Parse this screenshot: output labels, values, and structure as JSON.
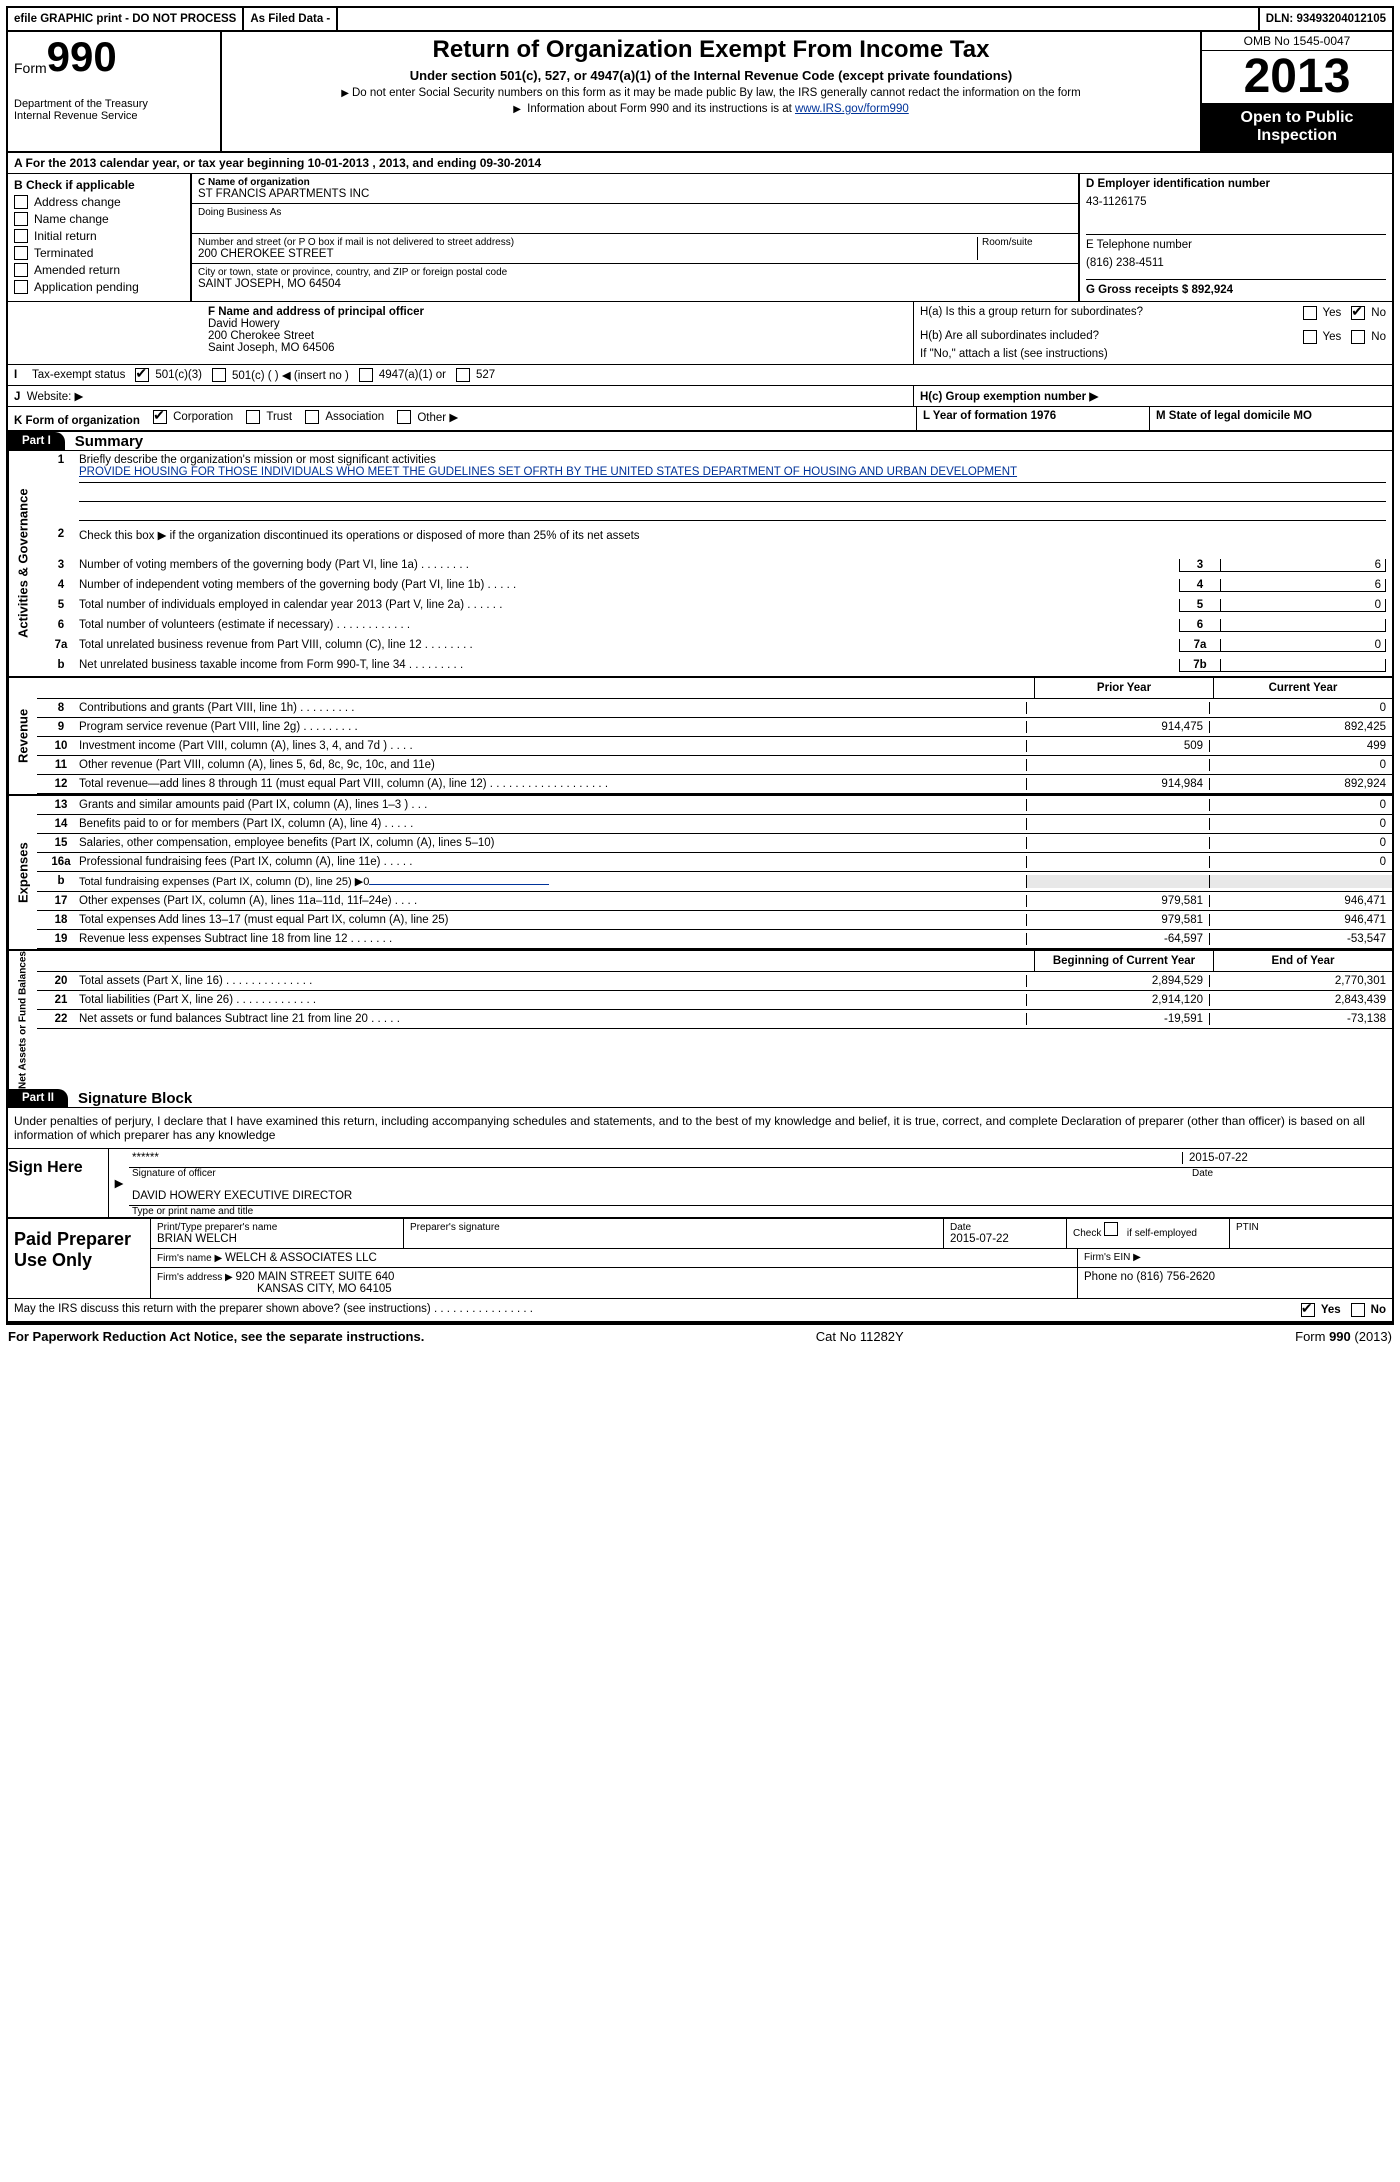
{
  "topbar": {
    "efile": "efile GRAPHIC print - DO NOT PROCESS",
    "asfiled": "As Filed Data -",
    "dln": "DLN: 93493204012105"
  },
  "header": {
    "form_word": "Form",
    "form_num": "990",
    "dept1": "Department of the Treasury",
    "dept2": "Internal Revenue Service",
    "title": "Return of Organization Exempt From Income Tax",
    "subtitle": "Under section 501(c), 527, or 4947(a)(1) of the Internal Revenue Code (except private foundations)",
    "note1": "Do not enter Social Security numbers on this form as it may be made public  By law, the IRS generally cannot redact the information on the form",
    "note2_pre": "Information about Form 990 and its instructions is at ",
    "note2_link": "www.IRS.gov/form990",
    "omb": "OMB No  1545-0047",
    "year": "2013",
    "open1": "Open to Public",
    "open2": "Inspection"
  },
  "rowA": "A  For the 2013 calendar year, or tax year beginning 10-01-2013      , 2013, and ending 09-30-2014",
  "colB": {
    "hdr": "B  Check if applicable",
    "items": [
      "Address change",
      "Name change",
      "Initial return",
      "Terminated",
      "Amended return",
      "Application pending"
    ]
  },
  "colC": {
    "c_label": "C Name of organization",
    "c_name": "ST FRANCIS APARTMENTS INC",
    "dba": "Doing Business As",
    "addr_label": "Number and street (or P O  box if mail is not delivered to street address)",
    "room": "Room/suite",
    "addr": "200 CHEROKEE STREET",
    "city_label": "City or town, state or province, country, and ZIP or foreign postal code",
    "city": "SAINT JOSEPH, MO  64504"
  },
  "colD": {
    "d_label": "D Employer identification number",
    "ein": "43-1126175",
    "e_label": "E Telephone number",
    "phone": "(816) 238-4511",
    "g_label": "G Gross receipts $ 892,924"
  },
  "rowF": {
    "f_label": "F  Name and address of principal officer",
    "f_name": "David Howery",
    "f_addr1": "200 Cherokee Street",
    "f_addr2": "Saint Joseph, MO  64506"
  },
  "rowH": {
    "ha": "H(a)  Is this a group return for subordinates?",
    "hb": "H(b)  Are all subordinates included?",
    "hb_note": "If \"No,\" attach a list  (see instructions)",
    "hc": "H(c)  Group exemption number ▶",
    "yes": "Yes",
    "no": "No"
  },
  "rowI": {
    "label": "I",
    "text": "Tax-exempt status",
    "o1": "501(c)(3)",
    "o2": "501(c) (   ) ◀ (insert no )",
    "o3": "4947(a)(1) or",
    "o4": "527"
  },
  "rowJ": {
    "label": "J",
    "text": "Website: ▶"
  },
  "rowK": {
    "k": "K Form of organization",
    "k1": "Corporation",
    "k2": "Trust",
    "k3": "Association",
    "k4": "Other ▶",
    "l": "L Year of formation  1976",
    "m": "M State of legal domicile MO"
  },
  "part1": {
    "tag": "Part I",
    "title": "Summary"
  },
  "gov": {
    "vlabel": "Activities & Governance",
    "l1a": "Briefly describe the organization's mission or most significant activities",
    "l1b": "PROVIDE HOUSING FOR THOSE INDIVIDUALS WHO MEET THE GUDELINES SET OFRTH BY THE UNITED STATES DEPARTMENT OF HOUSING AND URBAN DEVELOPMENT",
    "l2": "Check this box ▶      if the organization discontinued its operations or disposed of more than 25% of its net assets",
    "l3": "Number of voting members of the governing body (Part VI, line 1a)   .    .    .    .    .    .    .    .",
    "l4": "Number of independent voting members of the governing body (Part VI, line 1b)    .    .    .    .    .",
    "l5": "Total number of individuals employed in calendar year 2013 (Part V, line 2a)    .    .    .    .    .    .",
    "l6": "Total number of volunteers (estimate if necessary)    .    .    .    .    .    .    .    .    .    .    .    .",
    "l7a": "Total unrelated business revenue from Part VIII, column (C), line 12    .    .    .    .    .    .    .    .",
    "l7b": "Net unrelated business taxable income from Form 990-T, line 34    .    .    .    .    .    .    .    .    .",
    "v3": "6",
    "v4": "6",
    "v5": "0",
    "v6": "",
    "v7a": "0",
    "v7b": ""
  },
  "twohdr": {
    "c1": "Prior Year",
    "c2": "Current Year"
  },
  "rev": {
    "vlabel": "Revenue",
    "rows": [
      {
        "n": "8",
        "t": "Contributions and grants (Part VIII, line 1h)    .    .    .    .    .    .    .    .    .",
        "v1": "",
        "v2": "0"
      },
      {
        "n": "9",
        "t": "Program service revenue (Part VIII, line 2g)    .    .    .    .    .    .    .    .    .",
        "v1": "914,475",
        "v2": "892,425"
      },
      {
        "n": "10",
        "t": "Investment income (Part VIII, column (A), lines 3, 4, and 7d )    .    .    .    .",
        "v1": "509",
        "v2": "499"
      },
      {
        "n": "11",
        "t": "Other revenue (Part VIII, column (A), lines 5, 6d, 8c, 9c, 10c, and 11e)",
        "v1": "",
        "v2": "0"
      },
      {
        "n": "12",
        "t": "Total revenue—add lines 8 through 11 (must equal Part VIII, column (A), line 12) .    .    .    .    .    .    .    .    .    .    .    .    .    .    .    .    .    .    .",
        "v1": "914,984",
        "v2": "892,924"
      }
    ]
  },
  "exp": {
    "vlabel": "Expenses",
    "rows": [
      {
        "n": "13",
        "t": "Grants and similar amounts paid (Part IX, column (A), lines 1–3 )    .    .    .",
        "v1": "",
        "v2": "0"
      },
      {
        "n": "14",
        "t": "Benefits paid to or for members (Part IX, column (A), line 4)    .    .    .    .    .",
        "v1": "",
        "v2": "0"
      },
      {
        "n": "15",
        "t": "Salaries, other compensation, employee benefits (Part IX, column (A), lines 5–10)",
        "v1": "",
        "v2": "0"
      },
      {
        "n": "16a",
        "t": "Professional fundraising fees (Part IX, column (A), line 11e)    .    .    .    .    .",
        "v1": "",
        "v2": "0"
      },
      {
        "n": "b",
        "t": "Total fundraising expenses (Part IX, column (D), line 25) ▶0",
        "v1": "—",
        "v2": "—"
      },
      {
        "n": "17",
        "t": "Other expenses (Part IX, column (A), lines 11a–11d, 11f–24e)    .    .    .    .",
        "v1": "979,581",
        "v2": "946,471"
      },
      {
        "n": "18",
        "t": "Total expenses  Add lines 13–17 (must equal Part IX, column (A), line 25)",
        "v1": "979,581",
        "v2": "946,471"
      },
      {
        "n": "19",
        "t": "Revenue less expenses  Subtract line 18 from line 12    .    .    .    .    .    .    .",
        "v1": "-64,597",
        "v2": "-53,547"
      }
    ]
  },
  "nethdr": {
    "c1": "Beginning of Current Year",
    "c2": "End of Year"
  },
  "net": {
    "vlabel": "Net Assets or Fund Balances",
    "rows": [
      {
        "n": "20",
        "t": "Total assets (Part X, line 16)    .    .    .    .    .    .    .    .    .    .    .    .    .    .",
        "v1": "2,894,529",
        "v2": "2,770,301"
      },
      {
        "n": "21",
        "t": "Total liabilities (Part X, line 26)    .    .    .    .    .    .    .    .    .    .    .    .    .",
        "v1": "2,914,120",
        "v2": "2,843,439"
      },
      {
        "n": "22",
        "t": "Net assets or fund balances  Subtract line 21 from line 20    .    .    .    .    .",
        "v1": "-19,591",
        "v2": "-73,138"
      }
    ]
  },
  "part2": {
    "tag": "Part II",
    "title": "Signature Block"
  },
  "perjury": "Under penalties of perjury, I declare that I have examined this return, including accompanying schedules and statements, and to the best of my knowledge and belief, it is true, correct, and complete  Declaration of preparer (other than officer) is based on all information of which preparer has any knowledge",
  "sign": {
    "here": "Sign Here",
    "stars": "******",
    "so": "Signature of officer",
    "date1": "2015-07-22",
    "dl": "Date",
    "name": "DAVID HOWERY EXECUTIVE DIRECTOR",
    "nl": "Type or print name and title"
  },
  "paid": {
    "label": "Paid Preparer Use Only",
    "h1": "Print/Type preparer's name",
    "h2": "Preparer's signature",
    "h3": "Date",
    "h4": "Check       if self-employed",
    "h5": "PTIN",
    "name": "BRIAN WELCH",
    "date": "2015-07-22",
    "firm_l": "Firm's name    ▶ ",
    "firm": "WELCH & ASSOCIATES LLC",
    "ein_l": "Firm's EIN ▶",
    "addr_l": "Firm's address ▶ ",
    "addr1": "920 MAIN STREET SUITE 640",
    "addr2": "KANSAS CITY, MO  64105",
    "phone_l": "Phone no  (816) 756-2620"
  },
  "discuss": "May the IRS discuss this return with the preparer shown above? (see instructions)    .    .    .    .    .    .    .    .    .    .    .    .    .    .    .    .",
  "footer": {
    "l": "For Paperwork Reduction Act Notice, see the separate instructions.",
    "m": "Cat No  11282Y",
    "r": "Form 990 (2013)"
  }
}
